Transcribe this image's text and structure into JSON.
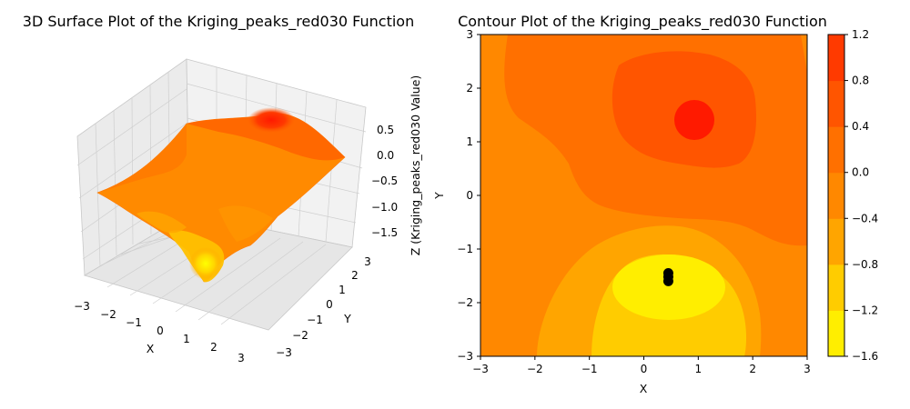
{
  "chart_data": [
    {
      "type": "surface3d",
      "title": "3D Surface Plot of the Kriging_peaks_red030 Function",
      "xlabel": "X",
      "ylabel": "Y",
      "zlabel": "Z (Kriging_peaks_red030 Value)",
      "xlim": [
        -3,
        3
      ],
      "ylim": [
        -3,
        3
      ],
      "zlim": [
        -1.6,
        0.8
      ],
      "xticks": [
        "−3",
        "−2",
        "−1",
        "0",
        "1",
        "2",
        "3"
      ],
      "yticks": [
        "−3",
        "−2",
        "−1",
        "0",
        "1",
        "2",
        "3"
      ],
      "zticks": [
        "0.5",
        "0.0",
        "−0.5",
        "−1.0",
        "−1.5"
      ],
      "colormap": "autumn_r",
      "grid": true
    },
    {
      "type": "contour",
      "title": "Contour Plot of the Kriging_peaks_red030 Function",
      "xlabel": "X",
      "ylabel": "Y",
      "xlim": [
        -3,
        3
      ],
      "ylim": [
        -3,
        3
      ],
      "xticks": [
        "−3",
        "−2",
        "−1",
        "0",
        "1",
        "2",
        "3"
      ],
      "yticks": [
        "3",
        "2",
        "1",
        "0",
        "−1",
        "−2",
        "−3"
      ],
      "levels": [
        -1.6,
        -1.2,
        -0.8,
        -0.4,
        0.0,
        0.4,
        0.8,
        1.2
      ],
      "level_colors": [
        "#ffee00",
        "#ffcc00",
        "#ffa500",
        "#ff8800",
        "#ff7000",
        "#ff5500",
        "#ff3a00"
      ],
      "colorbar_ticks": [
        "1.2",
        "0.8",
        "0.4",
        "0.0",
        "−0.4",
        "−0.8",
        "−1.2",
        "−1.6"
      ],
      "markers": [
        {
          "x": 0.45,
          "y": -1.45
        },
        {
          "x": 0.45,
          "y": -1.52
        },
        {
          "x": 0.45,
          "y": -1.6
        }
      ],
      "marker_color": "#000000"
    }
  ]
}
